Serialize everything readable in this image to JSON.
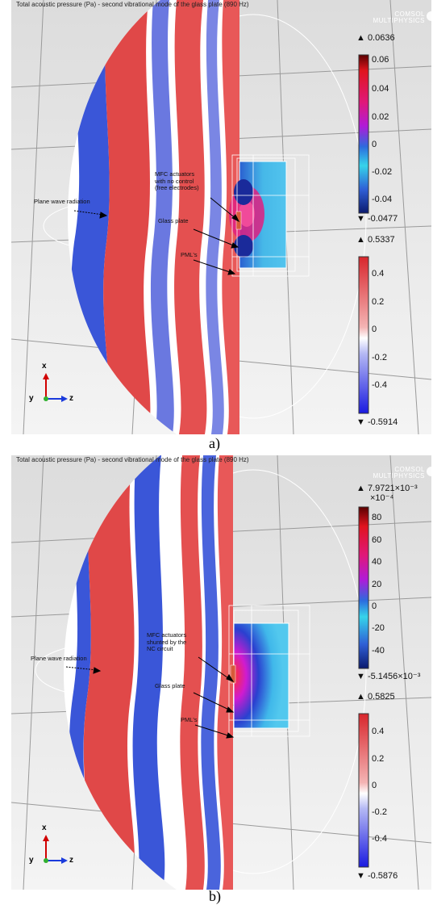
{
  "panels": [
    {
      "title": "Total acoustic pressure (Pa) - second vibrational mode of the glass plate (890 Hz)",
      "brand_line1": "COMSOL",
      "brand_line2": "MULTIPHYSICS",
      "top_colorbar": {
        "max": "▲ 0.0636",
        "exponent": "",
        "ticks": [
          "0.06",
          "0.04",
          "0.02",
          "0",
          "-0.02",
          "-0.04"
        ],
        "min": "▼ -0.0477"
      },
      "bottom_colorbar": {
        "max": "▲ 0.5337",
        "ticks": [
          "0.4",
          "0.2",
          "0",
          "-0.2",
          "-0.4"
        ],
        "min": "▼ -0.5914"
      },
      "annotations": {
        "actuators_line1": "MFC actuators",
        "actuators_line2": "with no control",
        "actuators_line3": "(free electrodes)",
        "plane_wave": "Plane wave radiation",
        "glass_plate": "Glass plate",
        "pmls": "PML's"
      },
      "axes": {
        "x": "x",
        "y": "y",
        "z": "z"
      },
      "caption": "a)"
    },
    {
      "title": "Total acoustic pressure (Pa) - second vibrational mode of the glass plate (890 Hz)",
      "brand_line1": "COMSOL",
      "brand_line2": "MULTIPHYSICS",
      "top_colorbar": {
        "max": "▲ 7.9721×10⁻³",
        "exponent": "×10⁻⁴",
        "ticks": [
          "80",
          "60",
          "40",
          "20",
          "0",
          "-20",
          "-40"
        ],
        "min": "▼ -5.1456×10⁻³"
      },
      "bottom_colorbar": {
        "max": "▲ 0.5825",
        "ticks": [
          "0.4",
          "0.2",
          "0",
          "-0.2",
          "-0.4"
        ],
        "min": "▼ -0.5876"
      },
      "annotations": {
        "actuators_line1": "MFC actuators",
        "actuators_line2": "shunted by the",
        "actuators_line3": "NC circuit",
        "plane_wave": "Plane wave radiation",
        "glass_plate": "Glass plate",
        "pmls": "PML's"
      },
      "axes": {
        "x": "x",
        "y": "y",
        "z": "z"
      },
      "caption": "b)"
    }
  ]
}
